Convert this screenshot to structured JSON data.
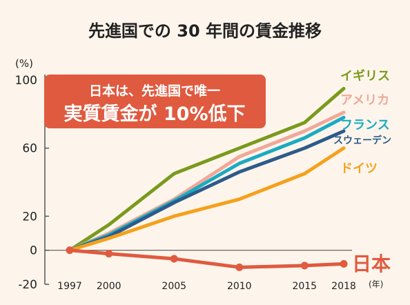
{
  "chart_data": {
    "type": "line",
    "title": "先進国での 30 年間の賃金推移",
    "y_unit": "(%)",
    "x_unit": "(年)",
    "x": [
      1997,
      2000,
      2005,
      2010,
      2015,
      2018
    ],
    "x_tick_labels": [
      "1997",
      "2000",
      "2005",
      "2010",
      "2015",
      "2018"
    ],
    "y_ticks": [
      100,
      60,
      20,
      0,
      -20
    ],
    "y_tick_labels": [
      "100",
      "60",
      "20",
      "0",
      "-20"
    ],
    "ylim": [
      -20,
      100
    ],
    "xlim": [
      1997,
      2018
    ],
    "grid": false,
    "callout": {
      "line1": "日本は、先進国で唯一",
      "line2": "実質賃金が 10%低下",
      "color": "#e05a3f"
    },
    "series": [
      {
        "name": "イギリス",
        "color": "#7a9a1c",
        "values": [
          0,
          15,
          45,
          60,
          75,
          95
        ]
      },
      {
        "name": "アメリカ",
        "color": "#f0a898",
        "values": [
          0,
          10,
          30,
          55,
          70,
          81
        ]
      },
      {
        "name": "フランス",
        "color": "#1aabc2",
        "values": [
          0,
          9,
          29,
          51,
          66,
          78
        ]
      },
      {
        "name": "スウェーデン",
        "color": "#2d5b8a",
        "values": [
          0,
          8,
          28,
          46,
          60,
          70
        ]
      },
      {
        "name": "ドイツ",
        "color": "#f5a11c",
        "values": [
          0,
          7,
          20,
          30,
          45,
          60
        ]
      },
      {
        "name": "日本",
        "color": "#e05a3f",
        "values": [
          0,
          -2,
          -5,
          -10,
          -9,
          -8
        ]
      }
    ]
  }
}
